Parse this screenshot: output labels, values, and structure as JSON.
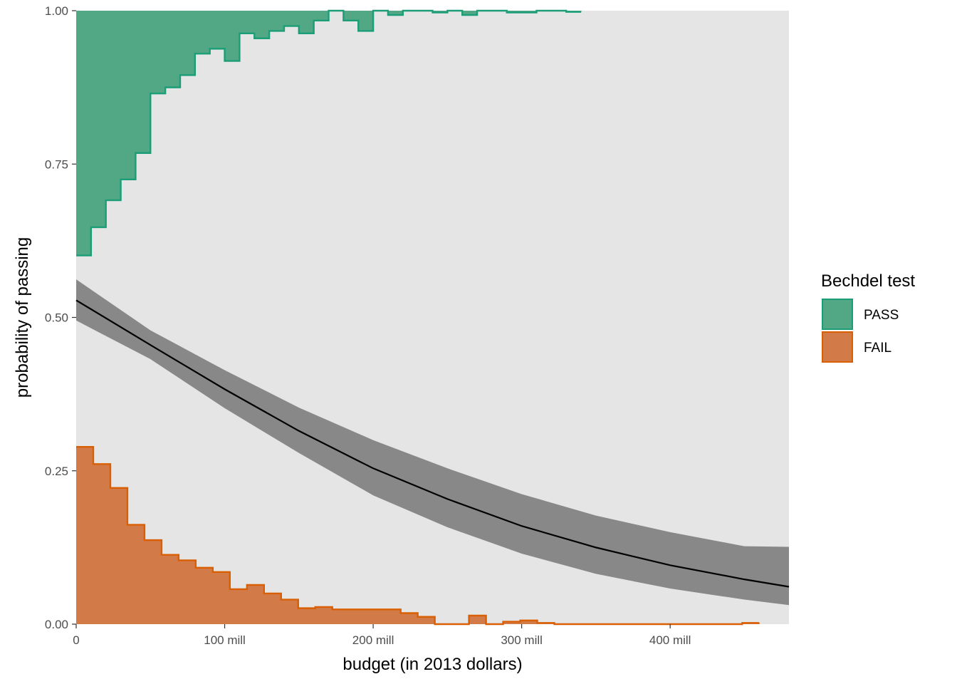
{
  "chart_data": {
    "type": "area",
    "title": "",
    "xlabel": "budget (in 2013 dollars)",
    "ylabel": "probability of passing",
    "xlim": [
      0,
      480
    ],
    "ylim": [
      0,
      1
    ],
    "x_ticks": [
      0,
      100,
      200,
      300,
      400
    ],
    "x_tick_labels": [
      "0",
      "100 mill",
      "200 mill",
      "300 mill",
      "400 mill"
    ],
    "y_ticks": [
      0,
      0.25,
      0.5,
      0.75,
      1
    ],
    "y_tick_labels": [
      "0.00",
      "0.25",
      "0.50",
      "0.75",
      "1.00"
    ],
    "grid": false,
    "panel_background": "#e5e5e5",
    "legend": {
      "title": "Bechdel test",
      "placement": "right",
      "entries": [
        {
          "label": "PASS",
          "fill": "#52a885",
          "stroke": "#1b9e77"
        },
        {
          "label": "FAIL",
          "fill": "#d27a48",
          "stroke": "#d95f02"
        }
      ]
    },
    "fit_curve": {
      "x": [
        0,
        50,
        100,
        150,
        200,
        250,
        300,
        350,
        400,
        450,
        480
      ],
      "y": [
        0.528,
        0.455,
        0.383,
        0.315,
        0.254,
        0.204,
        0.16,
        0.125,
        0.096,
        0.073,
        0.061
      ],
      "ci_lower": [
        0.495,
        0.432,
        0.352,
        0.279,
        0.21,
        0.158,
        0.115,
        0.082,
        0.058,
        0.04,
        0.031
      ],
      "ci_upper": [
        0.562,
        0.479,
        0.414,
        0.353,
        0.3,
        0.254,
        0.212,
        0.177,
        0.15,
        0.127,
        0.126
      ],
      "line_color": "#000000",
      "band_color": "#888888"
    },
    "series": [
      {
        "name": "PASS",
        "baseline": 1,
        "bin_width": 10,
        "bin_start": 0,
        "values": [
          0.601,
          0.647,
          0.691,
          0.725,
          0.768,
          0.865,
          0.875,
          0.895,
          0.93,
          0.938,
          0.918,
          0.963,
          0.955,
          0.967,
          0.975,
          0.963,
          0.984,
          1.0,
          0.984,
          0.967,
          1.0,
          0.993,
          1.0,
          1.0,
          0.997,
          1.0,
          0.993,
          1.0,
          1.0,
          0.997,
          0.997,
          1.0,
          1.0,
          0.998
        ]
      },
      {
        "name": "FAIL",
        "baseline": 0,
        "bin_width": 11.5,
        "bin_start": 0,
        "values": [
          0.289,
          0.261,
          0.222,
          0.162,
          0.137,
          0.113,
          0.104,
          0.092,
          0.085,
          0.057,
          0.064,
          0.05,
          0.04,
          0.026,
          0.028,
          0.024,
          0.024,
          0.024,
          0.024,
          0.018,
          0.012,
          0.0,
          0.0,
          0.014,
          0.0,
          0.004,
          0.006,
          0.002,
          0.0,
          0.0,
          0.0,
          0.0,
          0.0,
          0.0,
          0.0,
          0.0,
          0.0,
          0.0,
          0.0,
          0.002
        ]
      }
    ]
  }
}
